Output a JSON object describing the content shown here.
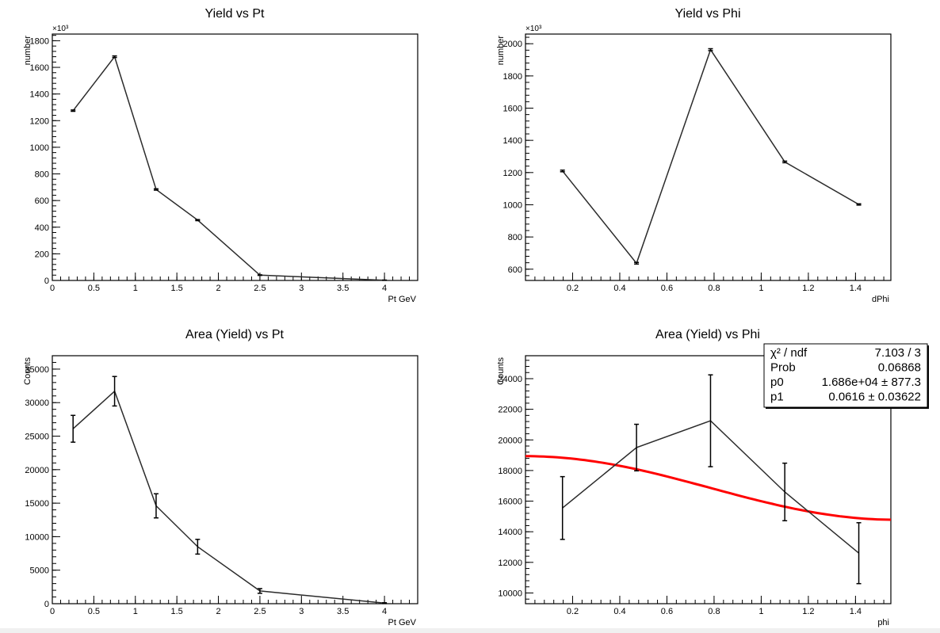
{
  "chart_data": [
    {
      "type": "line",
      "title": "Yield vs Pt",
      "xlabel": "Pt GeV",
      "ylabel": "number",
      "multiplier": "×10³",
      "xlim": [
        0,
        4.4
      ],
      "ylim": [
        0,
        1850
      ],
      "x_ticks": [
        0,
        0.5,
        1,
        1.5,
        2,
        2.5,
        3,
        3.5,
        4
      ],
      "x_tick_labels": [
        "0",
        "0.5",
        "1",
        "1.5",
        "2",
        "2.5",
        "3",
        "3.5",
        "4"
      ],
      "y_ticks": [
        0,
        200,
        400,
        600,
        800,
        1000,
        1200,
        1400,
        1600,
        1800
      ],
      "y_tick_labels": [
        "0",
        "200",
        "400",
        "600",
        "800",
        "1000",
        "1200",
        "1400",
        "1600",
        "1800"
      ],
      "x": [
        0.25,
        0.75,
        1.25,
        1.75,
        2.5,
        4.0
      ],
      "y": [
        1275,
        1680,
        683,
        453,
        40,
        2
      ],
      "err": [
        5,
        6,
        5,
        4,
        2,
        1
      ],
      "grid": false
    },
    {
      "type": "line",
      "title": "Yield vs Phi",
      "xlabel": "dPhi",
      "ylabel": "number",
      "multiplier": "×10³",
      "xlim": [
        0.0,
        1.55
      ],
      "ylim": [
        530,
        2060
      ],
      "x_ticks": [
        0.2,
        0.4,
        0.6,
        0.8,
        1.0,
        1.2,
        1.4
      ],
      "x_tick_labels": [
        "0.2",
        "0.4",
        "0.6",
        "0.8",
        "1",
        "1.2",
        "1.4"
      ],
      "y_ticks": [
        600,
        800,
        1000,
        1200,
        1400,
        1600,
        1800,
        2000
      ],
      "y_tick_labels": [
        "600",
        "800",
        "1000",
        "1200",
        "1400",
        "1600",
        "1800",
        "2000"
      ],
      "x": [
        0.157,
        0.471,
        0.785,
        1.1,
        1.414
      ],
      "y": [
        1210,
        637,
        1963,
        1266,
        1002
      ],
      "err": [
        5,
        5,
        6,
        5,
        4
      ],
      "grid": false
    },
    {
      "type": "line",
      "title": "Area (Yield) vs Pt",
      "xlabel": "Pt GeV",
      "ylabel": "Counts",
      "xlim": [
        0,
        4.4
      ],
      "ylim": [
        0,
        37000
      ],
      "x_ticks": [
        0,
        0.5,
        1,
        1.5,
        2,
        2.5,
        3,
        3.5,
        4
      ],
      "x_tick_labels": [
        "0",
        "0.5",
        "1",
        "1.5",
        "2",
        "2.5",
        "3",
        "3.5",
        "4"
      ],
      "y_ticks": [
        0,
        5000,
        10000,
        15000,
        20000,
        25000,
        30000,
        35000
      ],
      "y_tick_labels": [
        "0",
        "5000",
        "10000",
        "15000",
        "20000",
        "25000",
        "30000",
        "35000"
      ],
      "x": [
        0.25,
        0.75,
        1.25,
        1.75,
        2.5,
        4.0
      ],
      "y": [
        26100,
        31700,
        14600,
        8500,
        1900,
        80
      ],
      "err": [
        2000,
        2200,
        1800,
        1100,
        350,
        60
      ],
      "grid": false
    },
    {
      "type": "line",
      "title": "Area (Yield)  vs Phi",
      "xlabel": "phi",
      "ylabel": "Counts",
      "xlim": [
        0.0,
        1.55
      ],
      "ylim": [
        9300,
        25500
      ],
      "x_ticks": [
        0.2,
        0.4,
        0.6,
        0.8,
        1.0,
        1.2,
        1.4
      ],
      "x_tick_labels": [
        "0.2",
        "0.4",
        "0.6",
        "0.8",
        "1",
        "1.2",
        "1.4"
      ],
      "y_ticks": [
        10000,
        12000,
        14000,
        16000,
        18000,
        20000,
        22000,
        24000
      ],
      "y_tick_labels": [
        "10000",
        "12000",
        "14000",
        "16000",
        "18000",
        "20000",
        "22000",
        "24000"
      ],
      "x": [
        0.157,
        0.471,
        0.785,
        1.1,
        1.414
      ],
      "y": [
        15550,
        19500,
        21250,
        16600,
        12600
      ],
      "err": [
        2050,
        1520,
        3000,
        1880,
        1990
      ],
      "fit": {
        "color": "#ff0000",
        "p0": 16860,
        "p1": 0.0616,
        "x_range": [
          0.0,
          1.55
        ]
      },
      "stats_box": {
        "rows": [
          {
            "label": "χ² / ndf",
            "value": "7.103 / 3"
          },
          {
            "label": "Prob",
            "value": "0.06868"
          },
          {
            "label": "p0",
            "value": "1.686e+04 ± 877.3"
          },
          {
            "label": "p1",
            "value": "0.0616 ± 0.03622"
          }
        ]
      },
      "grid": false
    }
  ],
  "colors": {
    "line": "#2b2b2b",
    "fit": "#ff0000",
    "axis": "#000000"
  }
}
